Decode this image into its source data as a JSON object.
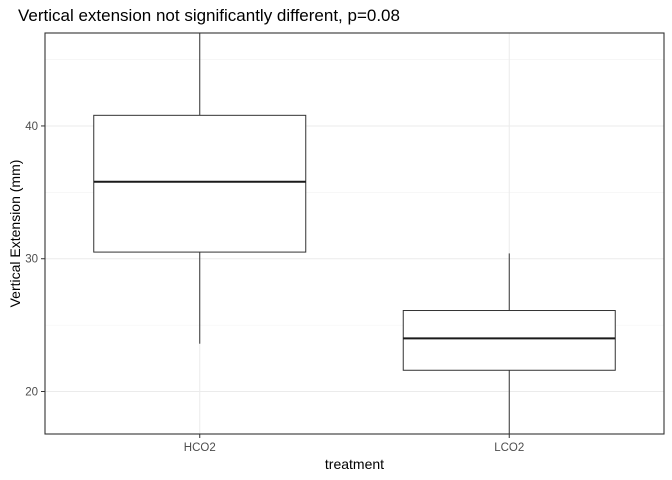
{
  "chart_data": {
    "type": "boxplot",
    "title": "Vertical extension not significantly different, p=0.08",
    "xlabel": "treatment",
    "ylabel": "Vertical Extension (mm)",
    "categories": [
      "HCO2",
      "LCO2"
    ],
    "boxes": [
      {
        "category": "HCO2",
        "lower_whisker": 23.6,
        "q1": 30.5,
        "median": 35.8,
        "q3": 40.8,
        "upper_whisker": 47.0
      },
      {
        "category": "LCO2",
        "lower_whisker": 16.8,
        "q1": 21.6,
        "median": 24.0,
        "q3": 26.1,
        "upper_whisker": 30.4
      }
    ],
    "ylim": [
      16.8,
      47.0
    ],
    "yticks": [
      20,
      30,
      40
    ],
    "grid": true,
    "colors": {
      "box_fill": "#ffffff",
      "box_line": "#333333",
      "grid": "#ebebeb"
    }
  }
}
